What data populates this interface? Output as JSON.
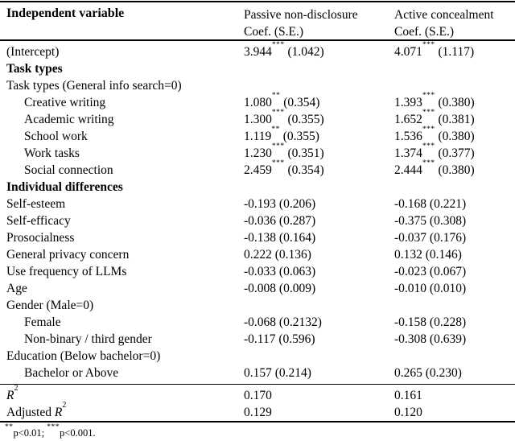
{
  "table": {
    "header": {
      "independent_variable": "Independent variable",
      "col2_line1": "Passive non-disclosure",
      "col2_line2": "Coef. (S.E.)",
      "col3_line1": "Active concealment",
      "col3_line2": "Coef. (S.E.)"
    },
    "rows": [
      {
        "label": "(Intercept)",
        "c2": {
          "coef": "3.944",
          "stars": "***",
          "se": "(1.042)"
        },
        "c3": {
          "coef": "4.071",
          "stars": "***",
          "se": "(1.117)"
        }
      },
      {
        "label": "Task types",
        "style": "section"
      },
      {
        "label": "Task types (General info search=0)"
      },
      {
        "label": "Creative writing",
        "indent": true,
        "c2": {
          "coef": "1.080",
          "stars": "**",
          "se": "(0.354)"
        },
        "c3": {
          "coef": "1.393",
          "stars": "***",
          "se": "(0.380)"
        }
      },
      {
        "label": "Academic writing",
        "indent": true,
        "c2": {
          "coef": "1.300",
          "stars": "***",
          "se": "(0.355)"
        },
        "c3": {
          "coef": "1.652",
          "stars": "***",
          "se": "(0.381)"
        }
      },
      {
        "label": "School work",
        "indent": true,
        "c2": {
          "coef": "1.119",
          "stars": "**",
          "se": "(0.355)"
        },
        "c3": {
          "coef": "1.536",
          "stars": "***",
          "se": "(0.380)"
        }
      },
      {
        "label": "Work tasks",
        "indent": true,
        "c2": {
          "coef": "1.230",
          "stars": "***",
          "se": "(0.351)"
        },
        "c3": {
          "coef": "1.374",
          "stars": "***",
          "se": "(0.377)"
        }
      },
      {
        "label": "Social connection",
        "indent": true,
        "c2": {
          "coef": "2.459",
          "stars": "***",
          "se": "(0.354)"
        },
        "c3": {
          "coef": "2.444",
          "stars": "***",
          "se": "(0.380)"
        }
      },
      {
        "label": "Individual differences",
        "style": "section"
      },
      {
        "label": "Self-esteem",
        "c2": {
          "coef": "-0.193",
          "se": "(0.206)"
        },
        "c3": {
          "coef": "-0.168",
          "se": "(0.221)"
        }
      },
      {
        "label": "Self-efficacy",
        "c2": {
          "coef": "-0.036",
          "se": "(0.287)"
        },
        "c3": {
          "coef": "-0.375",
          "se": "(0.308)"
        }
      },
      {
        "label": "Prosocialness",
        "c2": {
          "coef": "-0.138",
          "se": "(0.164)"
        },
        "c3": {
          "coef": "-0.037",
          "se": "(0.176)"
        }
      },
      {
        "label": "General privacy concern",
        "c2": {
          "coef": "0.222",
          "se": "(0.136)"
        },
        "c3": {
          "coef": "0.132",
          "se": "(0.146)"
        }
      },
      {
        "label": "Use frequency of LLMs",
        "c2": {
          "coef": "-0.033",
          "se": "(0.063)"
        },
        "c3": {
          "coef": "-0.023",
          "se": "(0.067)"
        }
      },
      {
        "label": "Age",
        "c2": {
          "coef": "-0.008",
          "se": "(0.009)"
        },
        "c3": {
          "coef": "-0.010",
          "se": "(0.010)"
        }
      },
      {
        "label": "Gender (Male=0)"
      },
      {
        "label": "Female",
        "indent": true,
        "c2": {
          "coef": "-0.068",
          "se": "(0.2132)"
        },
        "c3": {
          "coef": "-0.158",
          "se": "(0.228)"
        }
      },
      {
        "label": "Non-binary / third gender",
        "indent": true,
        "c2": {
          "coef": "-0.117",
          "se": "(0.596)"
        },
        "c3": {
          "coef": "-0.308",
          "se": "(0.639)"
        }
      },
      {
        "label": "Education (Below bachelor=0)"
      },
      {
        "label": "Bachelor or Above",
        "indent": true,
        "c2": {
          "coef": "0.157",
          "se": "(0.214)"
        },
        "c3": {
          "coef": "0.265",
          "se": "(0.230)"
        }
      },
      {
        "type": "rule"
      },
      {
        "label_var": "R",
        "label_sup": "2",
        "c2": {
          "coef": "0.170"
        },
        "c3": {
          "coef": "0.161"
        }
      },
      {
        "label_pre": "Adjusted ",
        "label_var": "R",
        "label_sup": "2",
        "c2": {
          "coef": "0.129"
        },
        "c3": {
          "coef": "0.120"
        }
      }
    ],
    "footnote_segments": [
      {
        "sup": "**"
      },
      {
        "text": "p<0.01; "
      },
      {
        "sup": "***"
      },
      {
        "text": "p<0.001."
      }
    ]
  }
}
